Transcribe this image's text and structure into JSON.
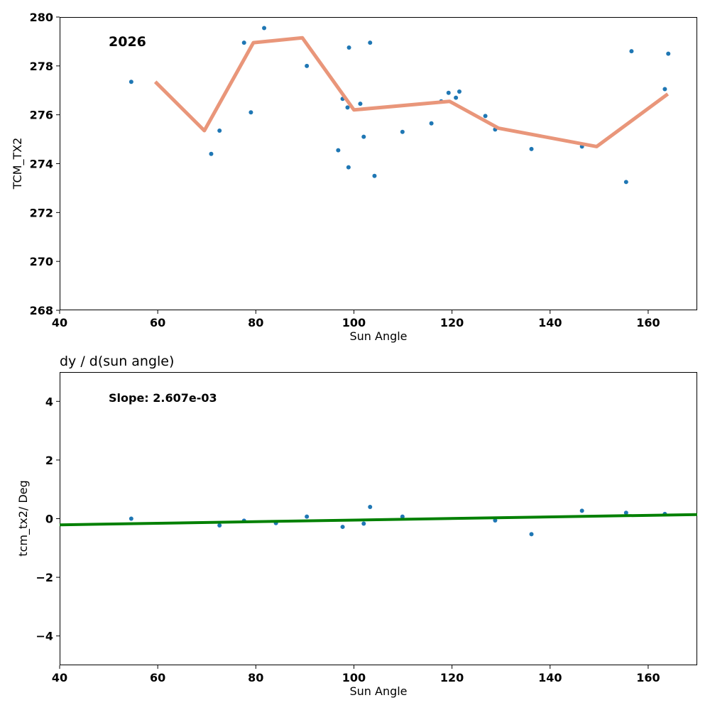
{
  "chart_data": [
    {
      "type": "scatter",
      "title": "",
      "annotation": "2026",
      "xlabel": "Sun Angle",
      "ylabel": "TCM_TX2",
      "xlim": [
        40,
        170
      ],
      "ylim": [
        268,
        280
      ],
      "xticks": [
        40,
        60,
        80,
        100,
        120,
        140,
        160
      ],
      "yticks": [
        268,
        270,
        272,
        274,
        276,
        278,
        280
      ],
      "xtick_labels": [
        "40",
        "60",
        "80",
        "100",
        "120",
        "140",
        "160"
      ],
      "ytick_labels": [
        "268",
        "270",
        "272",
        "274",
        "276",
        "278",
        "280"
      ],
      "points": {
        "name": "samples",
        "color": "#1f77b4",
        "x": [
          54.6,
          70.9,
          72.6,
          77.6,
          79.0,
          81.7,
          90.4,
          96.8,
          97.7,
          98.7,
          98.9,
          99.0,
          101.3,
          102.0,
          103.3,
          104.2,
          109.9,
          115.8,
          117.8,
          119.3,
          120.8,
          121.5,
          126.8,
          128.8,
          136.2,
          146.5,
          155.5,
          156.6,
          163.4,
          164.1
        ],
        "y": [
          277.35,
          274.4,
          275.35,
          278.95,
          276.1,
          279.55,
          278.0,
          274.55,
          276.65,
          276.3,
          273.85,
          278.75,
          276.45,
          275.1,
          278.95,
          273.5,
          275.3,
          275.65,
          276.55,
          276.9,
          276.7,
          276.95,
          275.95,
          275.4,
          274.6,
          274.7,
          273.25,
          278.6,
          277.05,
          278.5
        ]
      },
      "trend": {
        "name": "binned mean",
        "color": "#e9967a",
        "x": [
          59.5,
          69.5,
          79.5,
          89.5,
          100.0,
          119.5,
          129.5,
          149.5,
          164.0
        ],
        "y": [
          277.35,
          275.35,
          278.95,
          279.15,
          276.2,
          276.55,
          275.45,
          274.7,
          276.85
        ]
      }
    },
    {
      "type": "scatter",
      "title": "dy / d(sun angle)",
      "annotation": "Slope: 2.607e-03",
      "xlabel": "Sun Angle",
      "ylabel": "tcm_tx2/ Deg",
      "xlim": [
        40,
        170
      ],
      "ylim": [
        -5,
        5
      ],
      "xticks": [
        40,
        60,
        80,
        100,
        120,
        140,
        160
      ],
      "yticks": [
        -4,
        -2,
        0,
        2,
        4
      ],
      "xtick_labels": [
        "40",
        "60",
        "80",
        "100",
        "120",
        "140",
        "160"
      ],
      "ytick_labels": [
        "−4",
        "−2",
        "0",
        "2",
        "4"
      ],
      "points": {
        "name": "derivative",
        "color": "#1f77b4",
        "x": [
          54.6,
          72.6,
          77.6,
          84.1,
          90.4,
          97.7,
          102.0,
          103.3,
          109.9,
          128.8,
          136.2,
          146.5,
          155.5,
          163.4
        ],
        "y": [
          0.0,
          -0.23,
          -0.07,
          -0.15,
          0.07,
          -0.28,
          -0.17,
          0.4,
          0.07,
          -0.06,
          -0.53,
          0.27,
          0.2,
          0.16
        ]
      },
      "fit": {
        "name": "linear fit",
        "color": "#008000",
        "x": [
          40,
          170
        ],
        "y": [
          -0.21,
          0.14
        ]
      }
    }
  ]
}
